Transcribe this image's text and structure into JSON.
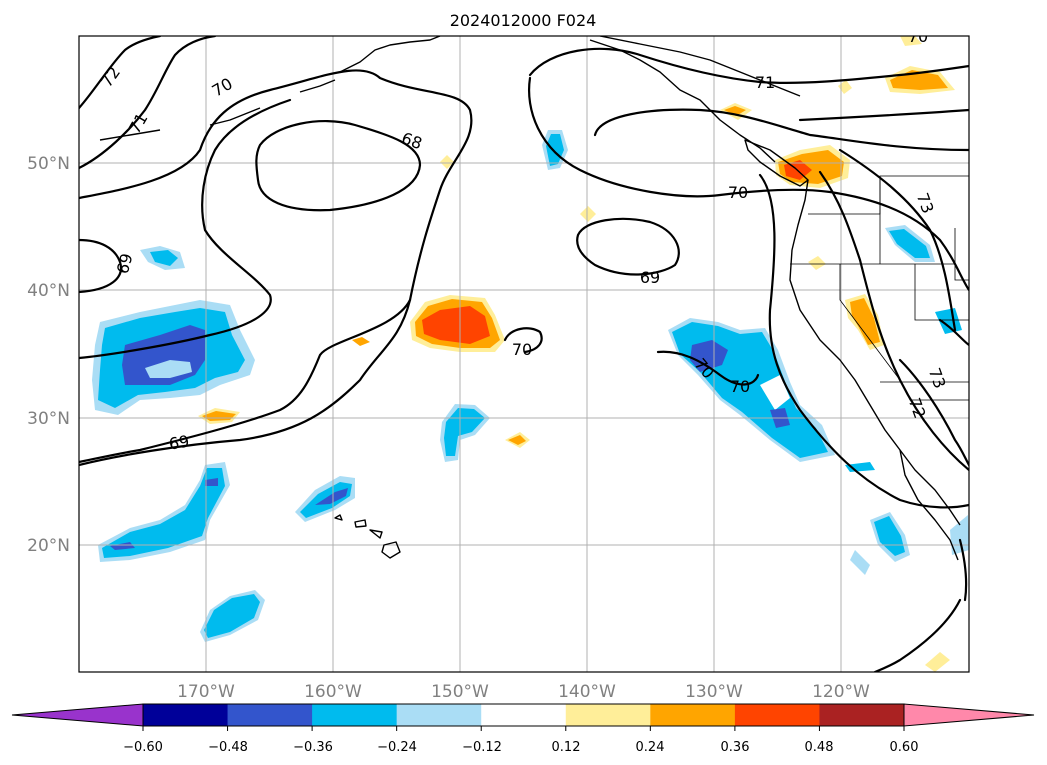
{
  "title": "2024012000 F024",
  "map_extent": {
    "lon_min": -180,
    "lon_max": -110,
    "lat_min": 10,
    "lat_max": 60
  },
  "lat_ticks": [
    {
      "value": 20,
      "label": "20°N"
    },
    {
      "value": 30,
      "label": "30°N"
    },
    {
      "value": 40,
      "label": "40°N"
    },
    {
      "value": 50,
      "label": "50°N"
    }
  ],
  "lon_ticks": [
    {
      "value": -170,
      "label": "170°W"
    },
    {
      "value": -160,
      "label": "160°W"
    },
    {
      "value": -150,
      "label": "150°W"
    },
    {
      "value": -140,
      "label": "140°W"
    },
    {
      "value": -130,
      "label": "130°W"
    },
    {
      "value": -120,
      "label": "120°W"
    }
  ],
  "colorbar": {
    "colors": [
      "#9933cc",
      "#000099",
      "#3355cc",
      "#00bbee",
      "#aaddf5",
      "#ffffff",
      "#ffee99",
      "#ffa500",
      "#ff4400",
      "#aa2222",
      "#ff88aa"
    ],
    "ticks": [
      "−0.60",
      "−0.48",
      "−0.36",
      "−0.24",
      "−0.12",
      "0.12",
      "0.24",
      "0.36",
      "0.48",
      "0.60"
    ]
  },
  "contour_labels": [
    "72",
    "70",
    "71",
    "68",
    "69",
    "70",
    "71",
    "70",
    "69",
    "70",
    "70",
    "70",
    "73",
    "73",
    "72",
    "69"
  ]
}
